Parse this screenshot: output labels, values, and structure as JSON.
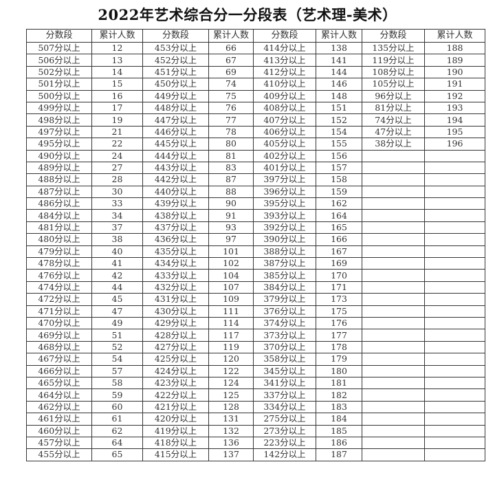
{
  "title": "2022年艺术综合分一分段表（艺术理-美术）",
  "headers": [
    "分数段",
    "累计人数",
    "分数段",
    "累计人数",
    "分数段",
    "累计人数",
    "分数段",
    "累计人数"
  ],
  "column_groups": [
    {
      "scores": [
        "507分以上",
        "506分以上",
        "502分以上",
        "501分以上",
        "500分以上",
        "499分以上",
        "498分以上",
        "497分以上",
        "495分以上",
        "490分以上",
        "489分以上",
        "488分以上",
        "487分以上",
        "486分以上",
        "484分以上",
        "481分以上",
        "480分以上",
        "479分以上",
        "478分以上",
        "476分以上",
        "474分以上",
        "472分以上",
        "471分以上",
        "470分以上",
        "469分以上",
        "468分以上",
        "467分以上",
        "466分以上",
        "465分以上",
        "464分以上",
        "462分以上",
        "461分以上",
        "460分以上",
        "457分以上",
        "455分以上"
      ],
      "counts": [
        "12",
        "13",
        "14",
        "15",
        "16",
        "17",
        "19",
        "21",
        "22",
        "24",
        "27",
        "28",
        "30",
        "33",
        "34",
        "37",
        "38",
        "40",
        "41",
        "42",
        "44",
        "45",
        "47",
        "49",
        "51",
        "52",
        "54",
        "57",
        "58",
        "59",
        "60",
        "61",
        "62",
        "64",
        "65"
      ]
    },
    {
      "scores": [
        "453分以上",
        "452分以上",
        "451分以上",
        "450分以上",
        "449分以上",
        "448分以上",
        "447分以上",
        "446分以上",
        "445分以上",
        "444分以上",
        "443分以上",
        "442分以上",
        "440分以上",
        "439分以上",
        "438分以上",
        "437分以上",
        "436分以上",
        "435分以上",
        "434分以上",
        "433分以上",
        "432分以上",
        "431分以上",
        "430分以上",
        "429分以上",
        "428分以上",
        "427分以上",
        "425分以上",
        "424分以上",
        "423分以上",
        "422分以上",
        "421分以上",
        "420分以上",
        "419分以上",
        "418分以上",
        "415分以上"
      ],
      "counts": [
        "66",
        "67",
        "69",
        "74",
        "75",
        "76",
        "77",
        "78",
        "80",
        "81",
        "83",
        "87",
        "88",
        "90",
        "91",
        "93",
        "97",
        "101",
        "102",
        "104",
        "107",
        "109",
        "111",
        "114",
        "117",
        "119",
        "120",
        "122",
        "124",
        "125",
        "128",
        "131",
        "132",
        "136",
        "137"
      ]
    },
    {
      "scores": [
        "414分以上",
        "413分以上",
        "412分以上",
        "410分以上",
        "409分以上",
        "408分以上",
        "407分以上",
        "406分以上",
        "405分以上",
        "402分以上",
        "401分以上",
        "397分以上",
        "396分以上",
        "395分以上",
        "393分以上",
        "392分以上",
        "390分以上",
        "388分以上",
        "387分以上",
        "385分以上",
        "384分以上",
        "379分以上",
        "376分以上",
        "374分以上",
        "373分以上",
        "370分以上",
        "358分以上",
        "345分以上",
        "341分以上",
        "337分以上",
        "334分以上",
        "275分以上",
        "273分以上",
        "223分以上",
        "142分以上"
      ],
      "counts": [
        "138",
        "141",
        "144",
        "146",
        "148",
        "151",
        "152",
        "154",
        "155",
        "156",
        "157",
        "158",
        "159",
        "162",
        "164",
        "165",
        "166",
        "167",
        "169",
        "170",
        "171",
        "173",
        "175",
        "176",
        "177",
        "178",
        "179",
        "180",
        "181",
        "182",
        "183",
        "184",
        "185",
        "186",
        "187"
      ]
    },
    {
      "scores": [
        "135分以上",
        "119分以上",
        "108分以上",
        "105分以上",
        "96分以上",
        "81分以上",
        "74分以上",
        "47分以上",
        "38分以上"
      ],
      "counts": [
        "188",
        "189",
        "190",
        "191",
        "192",
        "193",
        "194",
        "195",
        "196"
      ]
    }
  ]
}
